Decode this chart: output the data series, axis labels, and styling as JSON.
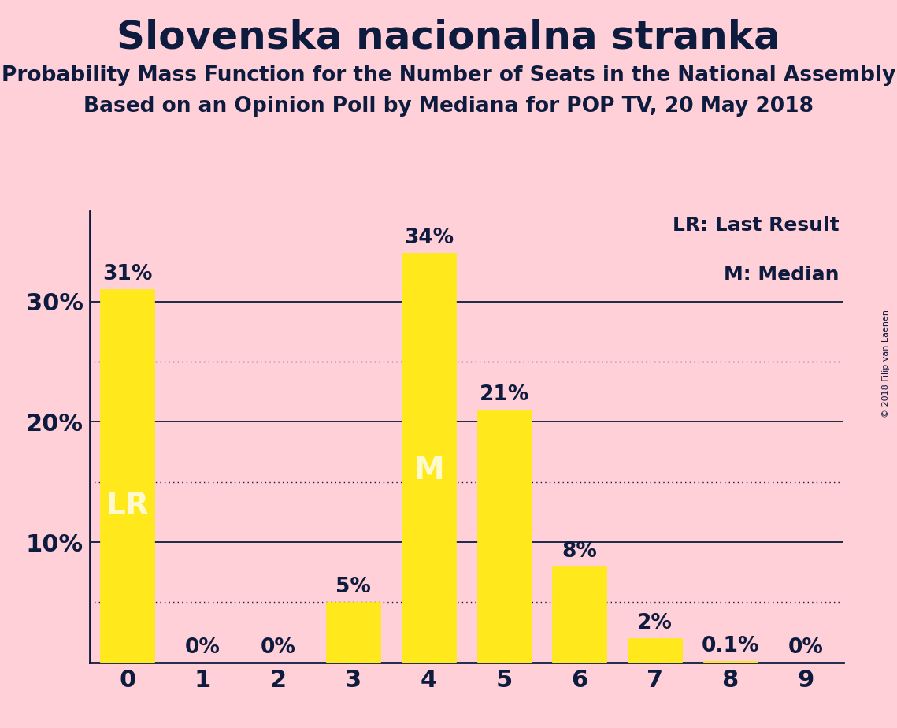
{
  "title": "Slovenska nacionalna stranka",
  "subtitle1": "Probability Mass Function for the Number of Seats in the National Assembly",
  "subtitle2": "Based on an Opinion Poll by Mediana for POP TV, 20 May 2018",
  "copyright": "© 2018 Filip van Laenen",
  "categories": [
    0,
    1,
    2,
    3,
    4,
    5,
    6,
    7,
    8,
    9
  ],
  "values": [
    0.31,
    0.0,
    0.0,
    0.05,
    0.34,
    0.21,
    0.08,
    0.02,
    0.001,
    0.0
  ],
  "bar_labels": [
    "31%",
    "0%",
    "0%",
    "5%",
    "34%",
    "21%",
    "8%",
    "2%",
    "0.1%",
    "0%"
  ],
  "lr_bar_index": 0,
  "m_bar_index": 4,
  "lr_label": "LR",
  "m_label": "M",
  "bar_color": "#FFE81C",
  "background_color": "#FFD0D8",
  "text_color": "#0D1B3E",
  "bar_label_color": "#0D1B3E",
  "special_label_color": "#FFFACD",
  "legend_lr": "LR: Last Result",
  "legend_m": "M: Median",
  "ylim": [
    0,
    0.375
  ],
  "yticks": [
    0.0,
    0.1,
    0.2,
    0.3
  ],
  "ytick_labels": [
    "",
    "10%",
    "20%",
    "30%"
  ],
  "dotted_gridlines": [
    0.05,
    0.15,
    0.25
  ],
  "solid_gridlines": [
    0.1,
    0.2,
    0.3
  ],
  "bar_width": 0.72,
  "title_fontsize": 36,
  "subtitle_fontsize": 19,
  "tick_fontsize": 22,
  "bar_label_fontsize": 19,
  "special_label_fontsize": 28,
  "legend_fontsize": 18,
  "copyright_fontsize": 8
}
